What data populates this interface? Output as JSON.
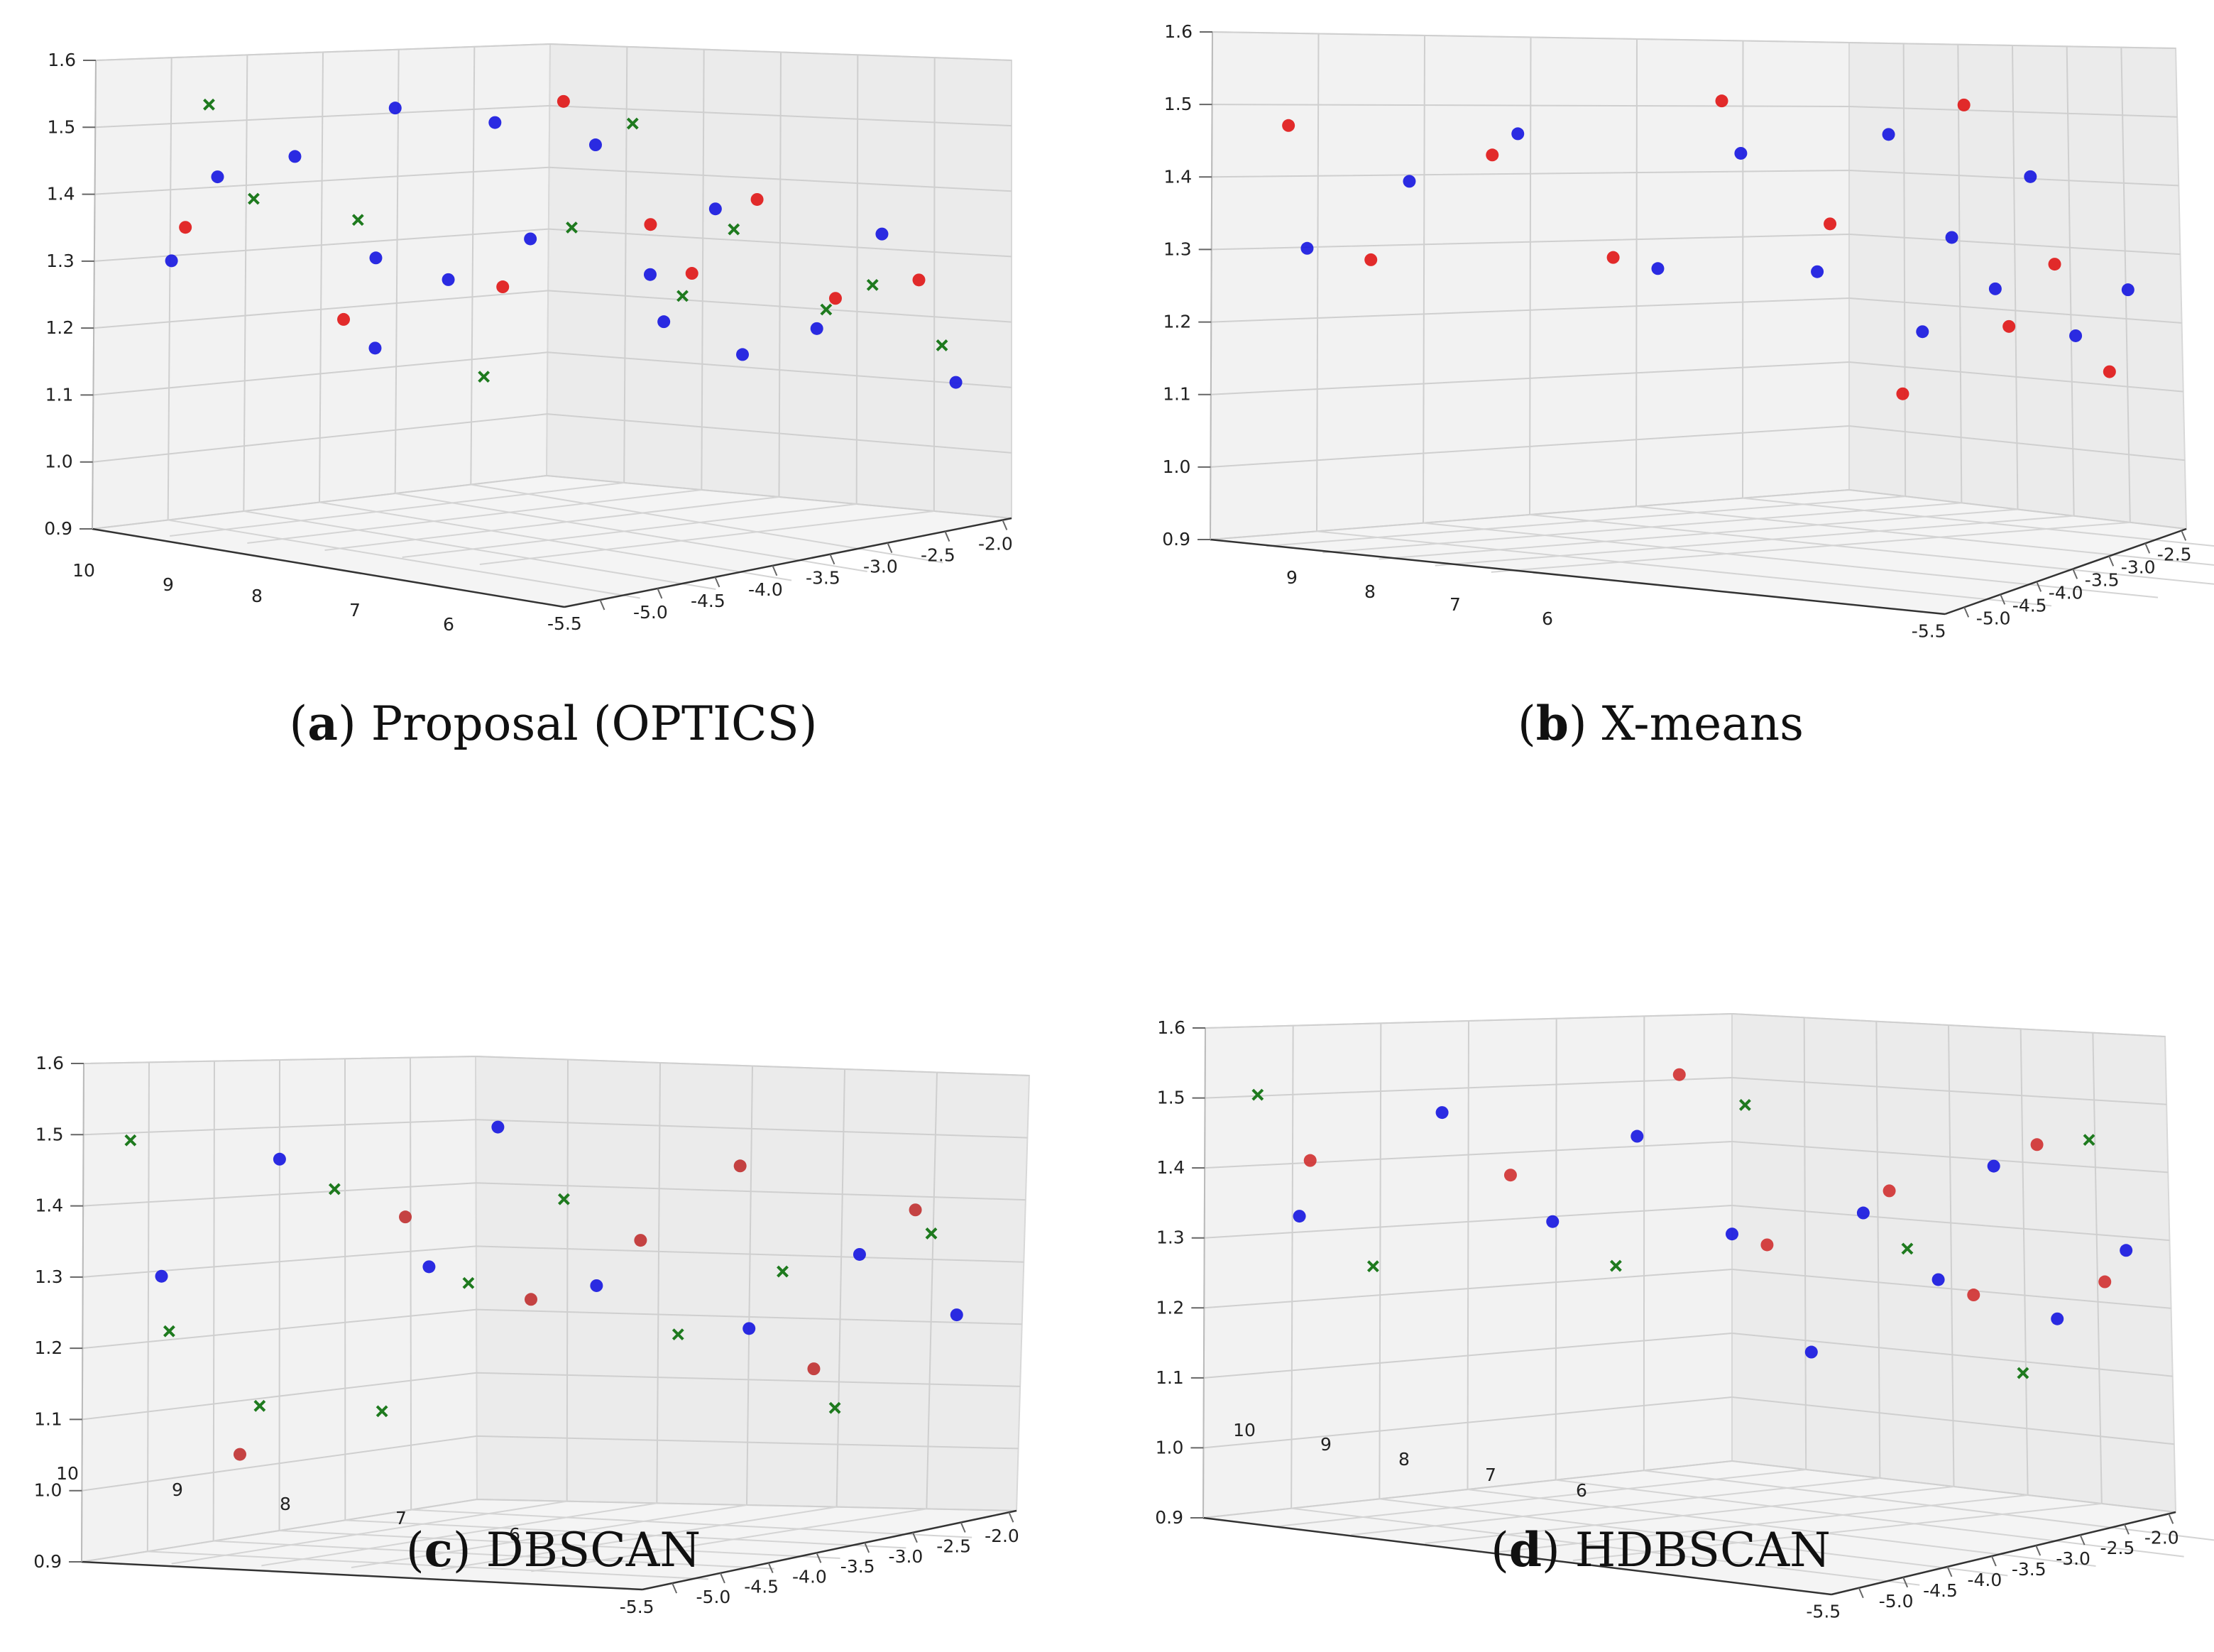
{
  "chart_data": [
    {
      "type": "scatter3d",
      "panel_letter": "a",
      "title": "Proposal (OPTICS)",
      "ylim": [
        0.9,
        1.6
      ],
      "y_ticks": [
        "0.9",
        "1.0",
        "1.1",
        "1.2",
        "1.3",
        "1.4",
        "1.5",
        "1.6"
      ],
      "depth_ticks": [
        "10",
        "9",
        "8",
        "7",
        "6"
      ],
      "x_ticks": [
        "-5.5",
        "-5.0",
        "-4.5",
        "-4.0",
        "-3.5",
        "-3.0",
        "-2.5",
        "-2.0"
      ],
      "legend_classes": [
        {
          "name": "blue",
          "marker": "circle",
          "color": "#1515e0"
        },
        {
          "name": "red",
          "marker": "circle",
          "color": "#e01515"
        },
        {
          "name": "green",
          "marker": "x",
          "color": "#1e7a1e"
        }
      ],
      "series": [
        {
          "class": "blue",
          "points": [
            [
              0.17,
              0.58
            ],
            [
              0.27,
              0.78
            ],
            [
              0.44,
              0.82
            ],
            [
              0.62,
              0.32
            ],
            [
              0.62,
              0.55
            ],
            [
              0.66,
              0.93
            ],
            [
              0.78,
              0.48
            ],
            [
              0.88,
              0.88
            ],
            [
              0.96,
              0.57
            ],
            [
              1.1,
              0.82
            ],
            [
              1.22,
              0.49
            ],
            [
              1.25,
              0.37
            ],
            [
              1.36,
              0.67
            ],
            [
              1.42,
              0.3
            ],
            [
              1.58,
              0.38
            ],
            [
              1.72,
              0.63
            ],
            [
              1.88,
              0.27
            ]
          ]
        },
        {
          "class": "red",
          "points": [
            [
              0.2,
              0.66
            ],
            [
              0.55,
              0.4
            ],
            [
              0.9,
              0.45
            ],
            [
              1.03,
              0.93
            ],
            [
              1.22,
              0.62
            ],
            [
              1.31,
              0.5
            ],
            [
              1.45,
              0.7
            ],
            [
              1.62,
              0.46
            ],
            [
              1.8,
              0.52
            ]
          ]
        },
        {
          "class": "green",
          "points": [
            [
              0.25,
              0.96
            ],
            [
              0.35,
              0.72
            ],
            [
              0.58,
              0.65
            ],
            [
              0.86,
              0.22
            ],
            [
              1.05,
              0.6
            ],
            [
              1.18,
              0.88
            ],
            [
              1.29,
              0.44
            ],
            [
              1.4,
              0.62
            ],
            [
              1.6,
              0.43
            ],
            [
              1.7,
              0.5
            ],
            [
              1.85,
              0.36
            ]
          ]
        }
      ]
    },
    {
      "type": "scatter3d",
      "panel_letter": "b",
      "title": "X-means",
      "ylim": [
        0.9,
        1.6
      ],
      "y_ticks": [
        "0.9",
        "1.0",
        "1.1",
        "1.2",
        "1.3",
        "1.4",
        "1.5",
        "1.6"
      ],
      "depth_ticks": [
        "9",
        "8",
        "7",
        "6"
      ],
      "x_ticks": [
        "-5.5",
        "-5.0",
        "-4.5",
        "-4.0",
        "-3.5",
        "-3.0",
        "-2.5"
      ],
      "legend_classes": [
        {
          "name": "blue",
          "marker": "circle",
          "color": "#1515e0"
        },
        {
          "name": "red",
          "marker": "circle",
          "color": "#e01515"
        }
      ],
      "series": [
        {
          "class": "blue",
          "points": [
            [
              0.15,
              0.59
            ],
            [
              0.31,
              0.74
            ],
            [
              0.48,
              0.85
            ],
            [
              0.7,
              0.52
            ],
            [
              0.83,
              0.8
            ],
            [
              0.95,
              0.5
            ],
            [
              1.12,
              0.85
            ],
            [
              1.22,
              0.36
            ],
            [
              1.31,
              0.6
            ],
            [
              1.44,
              0.48
            ],
            [
              1.55,
              0.76
            ],
            [
              1.68,
              0.38
            ],
            [
              1.84,
              0.5
            ]
          ]
        },
        {
          "class": "red",
          "points": [
            [
              0.12,
              0.87
            ],
            [
              0.25,
              0.56
            ],
            [
              0.44,
              0.8
            ],
            [
              0.63,
              0.55
            ],
            [
              0.8,
              0.93
            ],
            [
              0.97,
              0.62
            ],
            [
              1.16,
              0.2
            ],
            [
              1.35,
              0.93
            ],
            [
              1.48,
              0.39
            ],
            [
              1.62,
              0.55
            ],
            [
              1.78,
              0.3
            ]
          ]
        }
      ]
    },
    {
      "type": "scatter3d",
      "panel_letter": "c",
      "title": "DBSCAN",
      "ylim": [
        0.9,
        1.6
      ],
      "y_ticks": [
        "0.9",
        "1.0",
        "1.1",
        "1.2",
        "1.3",
        "1.4",
        "1.5",
        "1.6"
      ],
      "depth_ticks": [
        "10",
        "9",
        "8",
        "7",
        "6"
      ],
      "x_ticks": [
        "-5.5",
        "-5.0",
        "-4.5",
        "-4.0",
        "-3.5",
        "-3.0",
        "-2.5",
        "-2.0"
      ],
      "legend_classes": [
        {
          "name": "blue",
          "marker": "circle",
          "color": "#1515e0"
        },
        {
          "name": "red",
          "marker": "circle",
          "color": "#c03030"
        },
        {
          "name": "green",
          "marker": "x",
          "color": "#1e7a1e"
        }
      ],
      "series": [
        {
          "class": "blue",
          "points": [
            [
              0.2,
              0.58
            ],
            [
              0.5,
              0.84
            ],
            [
              0.88,
              0.55
            ],
            [
              1.04,
              0.9
            ],
            [
              1.22,
              0.5
            ],
            [
              1.5,
              0.4
            ],
            [
              1.7,
              0.6
            ],
            [
              1.88,
              0.45
            ]
          ]
        },
        {
          "class": "red",
          "points": [
            [
              0.4,
              0.14
            ],
            [
              0.82,
              0.68
            ],
            [
              1.1,
              0.46
            ],
            [
              1.3,
              0.62
            ],
            [
              1.48,
              0.82
            ],
            [
              1.62,
              0.3
            ],
            [
              1.8,
              0.72
            ]
          ]
        },
        {
          "class": "green",
          "points": [
            [
              0.12,
              0.9
            ],
            [
              0.22,
              0.45
            ],
            [
              0.45,
              0.25
            ],
            [
              0.64,
              0.76
            ],
            [
              0.76,
              0.2
            ],
            [
              0.98,
              0.5
            ],
            [
              1.16,
              0.72
            ],
            [
              1.37,
              0.38
            ],
            [
              1.56,
              0.55
            ],
            [
              1.66,
              0.2
            ],
            [
              1.83,
              0.66
            ]
          ]
        }
      ]
    },
    {
      "type": "scatter3d",
      "panel_letter": "d",
      "title": "HDBSCAN",
      "ylim": [
        0.9,
        1.6
      ],
      "y_ticks": [
        "0.9",
        "1.0",
        "1.1",
        "1.2",
        "1.3",
        "1.4",
        "1.5",
        "1.6"
      ],
      "depth_ticks": [
        "10",
        "9",
        "8",
        "7",
        "6"
      ],
      "x_ticks": [
        "-5.5",
        "-5.0",
        "-4.5",
        "-4.0",
        "-3.5",
        "-3.0",
        "-2.5",
        "-2.0"
      ],
      "legend_classes": [
        {
          "name": "blue",
          "marker": "circle",
          "color": "#1515e0"
        },
        {
          "name": "red",
          "marker": "circle",
          "color": "#d03030"
        },
        {
          "name": "green",
          "marker": "x",
          "color": "#1e7a1e"
        }
      ],
      "series": [
        {
          "class": "blue",
          "points": [
            [
              0.18,
              0.63
            ],
            [
              0.45,
              0.86
            ],
            [
              0.66,
              0.58
            ],
            [
              0.82,
              0.78
            ],
            [
              1.0,
              0.52
            ],
            [
              1.18,
              0.24
            ],
            [
              1.3,
              0.6
            ],
            [
              1.47,
              0.45
            ],
            [
              1.6,
              0.74
            ],
            [
              1.74,
              0.38
            ],
            [
              1.9,
              0.56
            ]
          ]
        },
        {
          "class": "red",
          "points": [
            [
              0.2,
              0.76
            ],
            [
              0.58,
              0.7
            ],
            [
              0.9,
              0.93
            ],
            [
              1.08,
              0.5
            ],
            [
              1.36,
              0.66
            ],
            [
              1.55,
              0.42
            ],
            [
              1.7,
              0.8
            ],
            [
              1.85,
              0.48
            ]
          ]
        },
        {
          "class": "green",
          "points": [
            [
              0.1,
              0.92
            ],
            [
              0.32,
              0.5
            ],
            [
              0.78,
              0.46
            ],
            [
              1.03,
              0.85
            ],
            [
              1.4,
              0.52
            ],
            [
              1.66,
              0.24
            ],
            [
              1.82,
              0.82
            ]
          ]
        }
      ]
    }
  ]
}
